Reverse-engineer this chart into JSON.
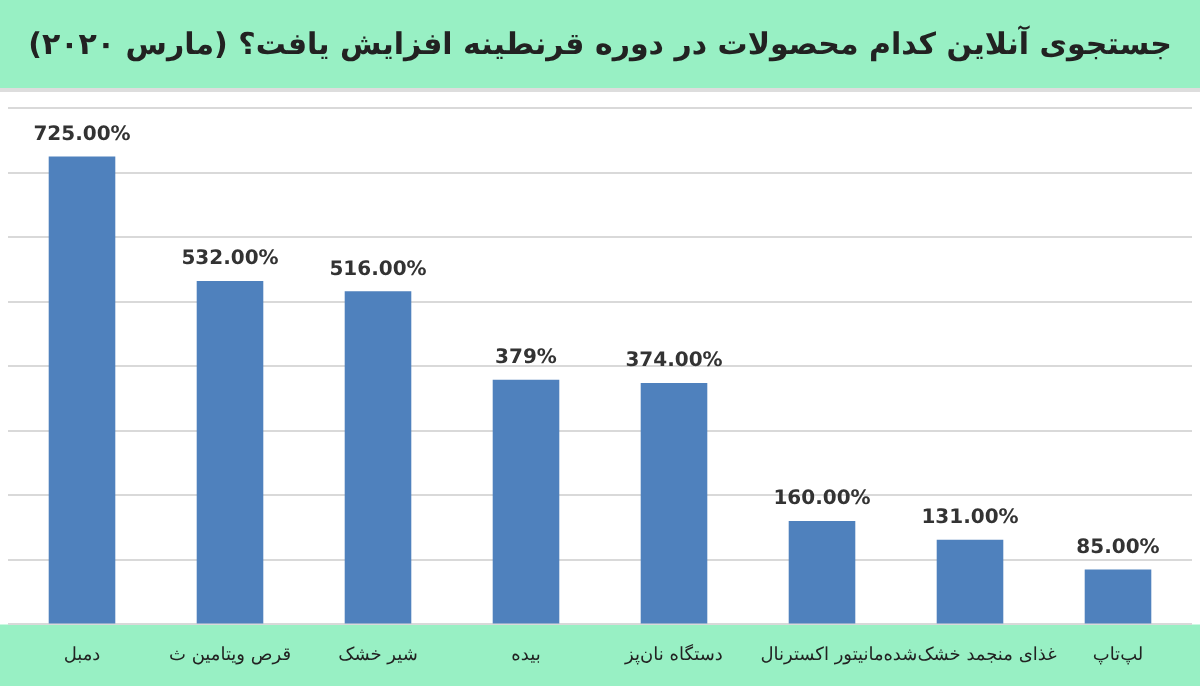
{
  "chart_data": {
    "type": "bar",
    "title": "جستجوی آنلاین کدام محصولات در دوره قرنطینه افزایش یافت؟ (مارس ۲۰۲۰)",
    "categories": [
      "دمبل",
      "قرص ویتامین ث",
      "شیر خشک",
      "بیده",
      "دستگاه نان‌پز",
      "مانیتور اکسترنال",
      "غذای منجمد خشک‌شده",
      "لپ‌تاپ"
    ],
    "values": [
      725,
      532,
      516,
      379,
      374,
      160,
      131,
      85
    ],
    "value_labels": [
      "725.00%",
      "532.00%",
      "516.00%",
      "379%",
      "374.00%",
      "160.00%",
      "131.00%",
      "85.00%"
    ],
    "color": "#4f81bd",
    "ylim": [
      0,
      800
    ],
    "yticks": [
      {
        "value": 0,
        "label": null
      },
      {
        "value": 100,
        "label": null
      },
      {
        "value": 200,
        "label": null
      },
      {
        "value": 300,
        "label": null
      },
      {
        "value": 400,
        "label": null
      },
      {
        "value": 500,
        "label": null
      },
      {
        "value": 600,
        "label": null
      },
      {
        "value": 700,
        "label": null
      },
      {
        "value": 800,
        "label": null
      }
    ],
    "grid": "y",
    "tick_labels": "x"
  }
}
